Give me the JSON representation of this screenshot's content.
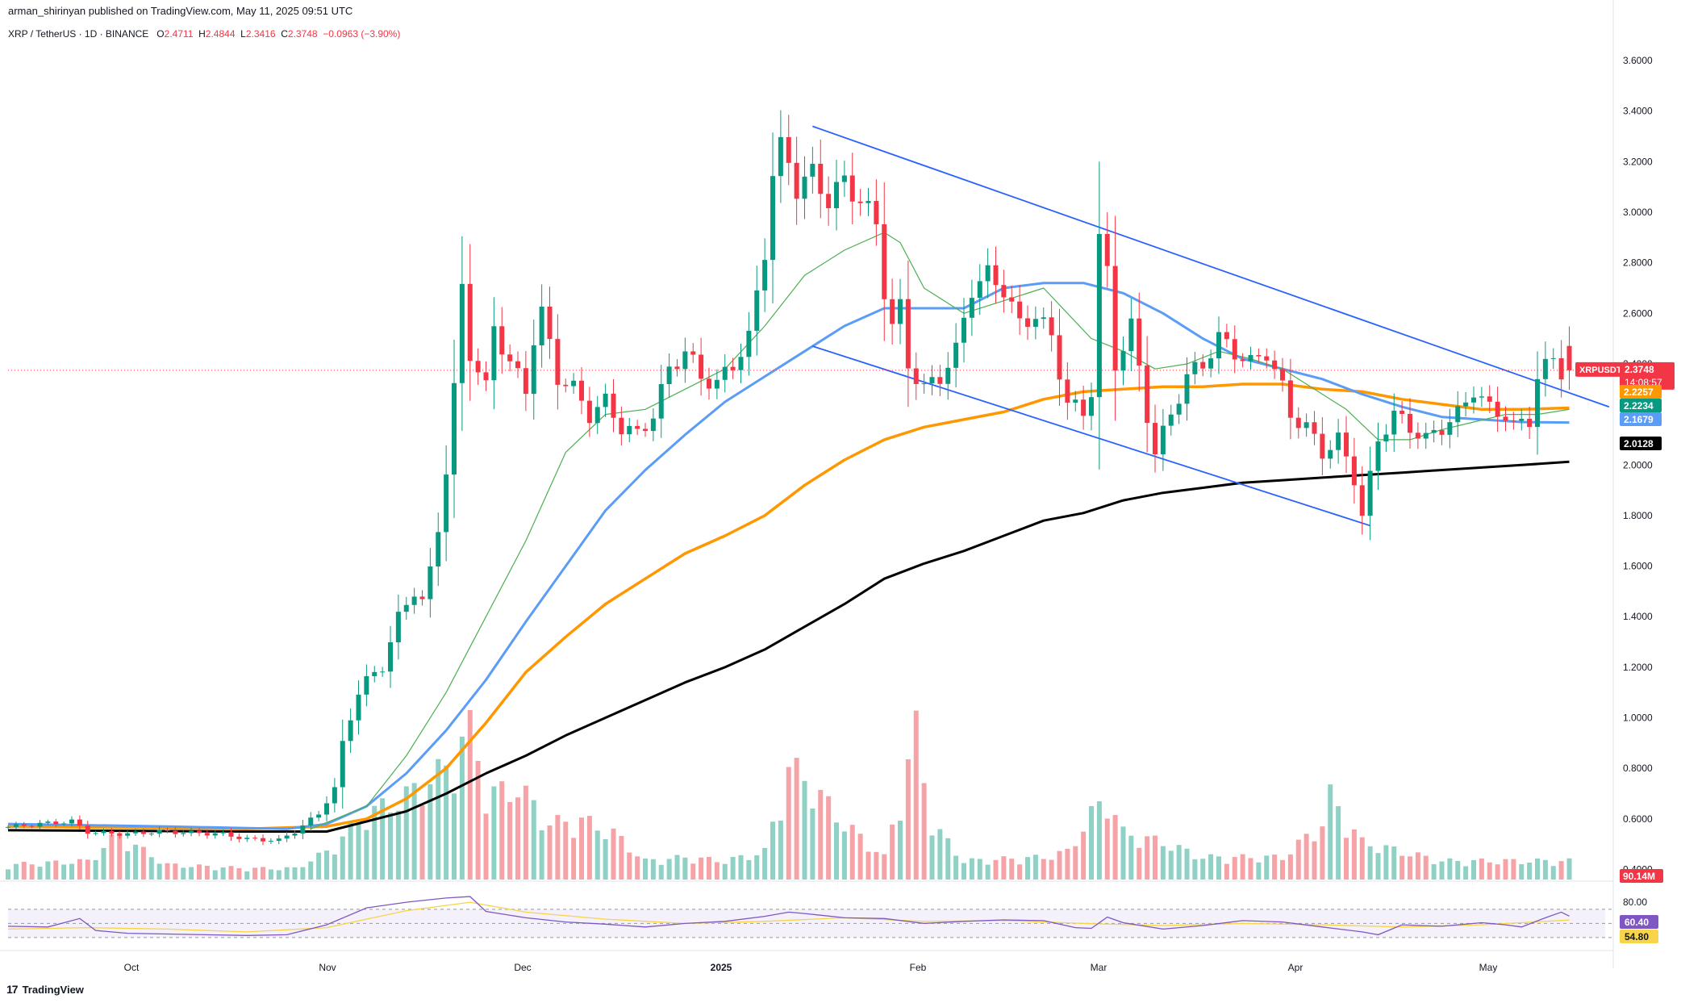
{
  "header": {
    "published": "arman_shirinyan published on TradingView.com, May 11, 2025 09:51 UTC"
  },
  "symbol": {
    "name": "XRP / TetherUS · 1D · BINANCE",
    "open_label": "O",
    "open": "2.4711",
    "high_label": "H",
    "high": "2.4844",
    "low_label": "L",
    "low": "2.3416",
    "close_label": "C",
    "close": "2.3748",
    "change": "−0.0963 (−3.90%)"
  },
  "brand": {
    "name": "TradingView",
    "logo_text": "17"
  },
  "colors": {
    "up": "#089981",
    "down": "#f23645",
    "vol_up": "#8fd1c5",
    "vol_down": "#f6a3a8",
    "ma_green": "#4caf50",
    "ma_blue": "#5b9cf6",
    "ma_orange": "#ff9800",
    "ma_black": "#000000",
    "channel": "#2962ff",
    "rsi": "#7e57c2",
    "rsi_ma": "#f7d44a"
  },
  "chart_data": {
    "type": "candlestick",
    "x_ticks": [
      "Oct",
      "Nov",
      "Dec",
      "2025",
      "Feb",
      "Mar",
      "Apr",
      "May"
    ],
    "y_ticks": [
      "0.4000",
      "0.6000",
      "0.8000",
      "1.0000",
      "1.2000",
      "1.4000",
      "1.6000",
      "1.8000",
      "2.0000",
      "2.2000",
      "2.4000",
      "2.6000",
      "2.8000",
      "3.0000",
      "3.2000",
      "3.4000",
      "3.6000"
    ],
    "ylim": [
      0.36,
      3.68
    ],
    "price_labels": [
      {
        "name": "XRPUSDT",
        "value": "2.3748",
        "timer": "14:08:57",
        "color": "#f23645"
      },
      {
        "value": "2.2257",
        "color": "#ff9800"
      },
      {
        "value": "2.2234",
        "color": "#089981"
      },
      {
        "value": "2.1679",
        "color": "#5b9cf6"
      },
      {
        "value": "2.0128",
        "color": "#000000"
      }
    ],
    "volume_label": "90.14M",
    "rsi": {
      "levels": [
        "80.00"
      ],
      "value": "60.40",
      "ma_value": "54.80"
    },
    "price_path": [
      [
        0,
        0.565
      ],
      [
        5,
        0.58
      ],
      [
        9,
        0.59
      ],
      [
        11,
        0.55
      ],
      [
        12,
        0.545
      ],
      [
        16,
        0.54
      ],
      [
        20,
        0.55
      ],
      [
        24,
        0.545
      ],
      [
        28,
        0.54
      ],
      [
        31,
        0.52
      ],
      [
        35,
        0.515
      ],
      [
        37,
        0.55
      ],
      [
        40,
        0.62
      ],
      [
        42,
        0.72
      ],
      [
        43,
        0.9
      ],
      [
        44,
        1.0
      ],
      [
        45,
        1.1
      ],
      [
        46,
        1.15
      ],
      [
        48,
        1.2
      ],
      [
        50,
        1.4
      ],
      [
        51,
        1.45
      ],
      [
        52,
        1.5
      ],
      [
        53,
        1.46
      ],
      [
        54,
        1.58
      ],
      [
        55,
        1.75
      ],
      [
        56,
        1.98
      ],
      [
        57,
        2.3
      ],
      [
        58,
        2.7
      ],
      [
        59,
        2.45
      ],
      [
        61,
        2.3
      ],
      [
        62,
        2.55
      ],
      [
        64,
        2.4
      ],
      [
        66,
        2.3
      ],
      [
        67,
        2.5
      ],
      [
        68,
        2.6
      ],
      [
        70,
        2.35
      ],
      [
        72,
        2.3
      ],
      [
        74,
        2.2
      ],
      [
        76,
        2.25
      ],
      [
        78,
        2.15
      ],
      [
        80,
        2.12
      ],
      [
        82,
        2.2
      ],
      [
        84,
        2.38
      ],
      [
        86,
        2.45
      ],
      [
        88,
        2.35
      ],
      [
        90,
        2.32
      ],
      [
        92,
        2.4
      ],
      [
        94,
        2.5
      ],
      [
        96,
        2.85
      ],
      [
        97,
        3.15
      ],
      [
        98,
        3.25
      ],
      [
        99,
        3.2
      ],
      [
        100,
        3.1
      ],
      [
        102,
        3.15
      ],
      [
        104,
        3.05
      ],
      [
        106,
        3.12
      ],
      [
        108,
        3.05
      ],
      [
        110,
        2.95
      ],
      [
        111,
        2.7
      ],
      [
        112,
        2.55
      ],
      [
        113,
        2.62
      ],
      [
        114,
        2.4
      ],
      [
        116,
        2.3
      ],
      [
        118,
        2.35
      ],
      [
        120,
        2.45
      ],
      [
        122,
        2.7
      ],
      [
        124,
        2.75
      ],
      [
        126,
        2.7
      ],
      [
        128,
        2.55
      ],
      [
        130,
        2.6
      ],
      [
        132,
        2.5
      ],
      [
        134,
        2.25
      ],
      [
        136,
        2.2
      ],
      [
        137,
        2.3
      ],
      [
        138,
        2.9
      ],
      [
        139,
        2.75
      ],
      [
        140,
        2.4
      ],
      [
        142,
        2.55
      ],
      [
        144,
        2.2
      ],
      [
        145,
        2.05
      ],
      [
        147,
        2.2
      ],
      [
        149,
        2.35
      ],
      [
        151,
        2.4
      ],
      [
        153,
        2.5
      ],
      [
        155,
        2.45
      ],
      [
        157,
        2.4
      ],
      [
        159,
        2.45
      ],
      [
        161,
        2.3
      ],
      [
        162,
        2.2
      ],
      [
        164,
        2.15
      ],
      [
        166,
        2.05
      ],
      [
        168,
        2.1
      ],
      [
        170,
        1.95
      ],
      [
        171,
        1.8
      ],
      [
        173,
        2.1
      ],
      [
        175,
        2.2
      ],
      [
        177,
        2.15
      ],
      [
        179,
        2.1
      ],
      [
        181,
        2.15
      ],
      [
        183,
        2.2
      ],
      [
        185,
        2.3
      ],
      [
        187,
        2.22
      ],
      [
        189,
        2.2
      ],
      [
        190,
        2.15
      ],
      [
        192,
        2.18
      ],
      [
        193,
        2.35
      ],
      [
        195,
        2.42
      ],
      [
        196,
        2.3748
      ]
    ],
    "ma_green": [
      [
        38,
        0.56
      ],
      [
        45,
        0.65
      ],
      [
        50,
        0.85
      ],
      [
        55,
        1.1
      ],
      [
        60,
        1.4
      ],
      [
        65,
        1.7
      ],
      [
        70,
        2.05
      ],
      [
        75,
        2.2
      ],
      [
        80,
        2.22
      ],
      [
        85,
        2.3
      ],
      [
        90,
        2.38
      ],
      [
        95,
        2.55
      ],
      [
        100,
        2.75
      ],
      [
        105,
        2.85
      ],
      [
        110,
        2.92
      ],
      [
        112,
        2.88
      ],
      [
        115,
        2.7
      ],
      [
        120,
        2.6
      ],
      [
        125,
        2.65
      ],
      [
        130,
        2.7
      ],
      [
        133,
        2.6
      ],
      [
        136,
        2.5
      ],
      [
        140,
        2.45
      ],
      [
        144,
        2.38
      ],
      [
        148,
        2.4
      ],
      [
        152,
        2.45
      ],
      [
        156,
        2.42
      ],
      [
        160,
        2.38
      ],
      [
        164,
        2.3
      ],
      [
        168,
        2.22
      ],
      [
        172,
        2.1
      ],
      [
        176,
        2.1
      ],
      [
        180,
        2.14
      ],
      [
        184,
        2.17
      ],
      [
        188,
        2.2
      ],
      [
        192,
        2.2
      ],
      [
        196,
        2.22
      ]
    ],
    "ma_blue": [
      [
        0,
        0.58
      ],
      [
        20,
        0.57
      ],
      [
        35,
        0.56
      ],
      [
        40,
        0.58
      ],
      [
        45,
        0.65
      ],
      [
        50,
        0.78
      ],
      [
        55,
        0.95
      ],
      [
        60,
        1.15
      ],
      [
        65,
        1.38
      ],
      [
        70,
        1.6
      ],
      [
        75,
        1.82
      ],
      [
        80,
        1.98
      ],
      [
        85,
        2.12
      ],
      [
        90,
        2.25
      ],
      [
        95,
        2.35
      ],
      [
        100,
        2.45
      ],
      [
        105,
        2.55
      ],
      [
        110,
        2.62
      ],
      [
        115,
        2.62
      ],
      [
        120,
        2.62
      ],
      [
        125,
        2.7
      ],
      [
        130,
        2.72
      ],
      [
        135,
        2.72
      ],
      [
        140,
        2.68
      ],
      [
        145,
        2.6
      ],
      [
        150,
        2.5
      ],
      [
        155,
        2.42
      ],
      [
        160,
        2.38
      ],
      [
        165,
        2.34
      ],
      [
        170,
        2.28
      ],
      [
        175,
        2.23
      ],
      [
        180,
        2.19
      ],
      [
        185,
        2.18
      ],
      [
        190,
        2.17
      ],
      [
        196,
        2.168
      ]
    ],
    "ma_orange": [
      [
        0,
        0.57
      ],
      [
        30,
        0.56
      ],
      [
        40,
        0.57
      ],
      [
        45,
        0.6
      ],
      [
        50,
        0.68
      ],
      [
        55,
        0.8
      ],
      [
        60,
        0.98
      ],
      [
        65,
        1.18
      ],
      [
        70,
        1.32
      ],
      [
        75,
        1.45
      ],
      [
        80,
        1.55
      ],
      [
        85,
        1.65
      ],
      [
        90,
        1.72
      ],
      [
        95,
        1.8
      ],
      [
        100,
        1.92
      ],
      [
        105,
        2.02
      ],
      [
        110,
        2.1
      ],
      [
        115,
        2.15
      ],
      [
        120,
        2.18
      ],
      [
        125,
        2.21
      ],
      [
        130,
        2.26
      ],
      [
        135,
        2.29
      ],
      [
        140,
        2.3
      ],
      [
        145,
        2.31
      ],
      [
        150,
        2.31
      ],
      [
        155,
        2.32
      ],
      [
        160,
        2.32
      ],
      [
        165,
        2.3
      ],
      [
        170,
        2.29
      ],
      [
        175,
        2.26
      ],
      [
        180,
        2.24
      ],
      [
        185,
        2.22
      ],
      [
        190,
        2.22
      ],
      [
        196,
        2.226
      ]
    ],
    "ma_black": [
      [
        0,
        0.555
      ],
      [
        30,
        0.55
      ],
      [
        40,
        0.55
      ],
      [
        45,
        0.59
      ],
      [
        50,
        0.63
      ],
      [
        55,
        0.7
      ],
      [
        60,
        0.78
      ],
      [
        65,
        0.85
      ],
      [
        70,
        0.93
      ],
      [
        75,
        1.0
      ],
      [
        80,
        1.07
      ],
      [
        85,
        1.14
      ],
      [
        90,
        1.2
      ],
      [
        95,
        1.27
      ],
      [
        100,
        1.36
      ],
      [
        105,
        1.45
      ],
      [
        110,
        1.55
      ],
      [
        115,
        1.61
      ],
      [
        120,
        1.66
      ],
      [
        125,
        1.72
      ],
      [
        130,
        1.78
      ],
      [
        135,
        1.81
      ],
      [
        140,
        1.86
      ],
      [
        145,
        1.89
      ],
      [
        150,
        1.91
      ],
      [
        155,
        1.93
      ],
      [
        160,
        1.94
      ],
      [
        165,
        1.95
      ],
      [
        170,
        1.96
      ],
      [
        175,
        1.97
      ],
      [
        180,
        1.98
      ],
      [
        185,
        1.99
      ],
      [
        190,
        2.0
      ],
      [
        196,
        2.013
      ]
    ],
    "channel_upper": [
      [
        101,
        3.34
      ],
      [
        201,
        2.23
      ]
    ],
    "channel_lower": [
      [
        101,
        2.47
      ],
      [
        171,
        1.76
      ]
    ],
    "volume_path": [
      [
        0,
        0.08
      ],
      [
        10,
        0.1
      ],
      [
        14,
        0.25
      ],
      [
        16,
        0.18
      ],
      [
        20,
        0.08
      ],
      [
        30,
        0.06
      ],
      [
        36,
        0.06
      ],
      [
        40,
        0.15
      ],
      [
        45,
        0.35
      ],
      [
        50,
        0.45
      ],
      [
        55,
        0.6
      ],
      [
        57,
        0.75
      ],
      [
        58,
        0.9
      ],
      [
        60,
        0.45
      ],
      [
        64,
        0.5
      ],
      [
        68,
        0.3
      ],
      [
        72,
        0.32
      ],
      [
        76,
        0.25
      ],
      [
        80,
        0.1
      ],
      [
        85,
        0.12
      ],
      [
        90,
        0.1
      ],
      [
        95,
        0.15
      ],
      [
        98,
        0.6
      ],
      [
        100,
        0.55
      ],
      [
        105,
        0.3
      ],
      [
        110,
        0.12
      ],
      [
        114,
        0.8
      ],
      [
        116,
        0.3
      ],
      [
        120,
        0.1
      ],
      [
        130,
        0.12
      ],
      [
        133,
        0.15
      ],
      [
        136,
        0.35
      ],
      [
        138,
        0.45
      ],
      [
        140,
        0.25
      ],
      [
        145,
        0.2
      ],
      [
        150,
        0.12
      ],
      [
        160,
        0.12
      ],
      [
        165,
        0.3
      ],
      [
        166,
        0.45
      ],
      [
        170,
        0.2
      ],
      [
        180,
        0.1
      ],
      [
        190,
        0.1
      ],
      [
        196,
        0.1
      ]
    ],
    "rsi_path": [
      [
        0,
        46
      ],
      [
        5,
        45
      ],
      [
        9,
        57
      ],
      [
        11,
        40
      ],
      [
        15,
        36
      ],
      [
        20,
        35
      ],
      [
        30,
        33
      ],
      [
        35,
        34
      ],
      [
        40,
        48
      ],
      [
        45,
        72
      ],
      [
        50,
        80
      ],
      [
        55,
        86
      ],
      [
        58,
        88
      ],
      [
        60,
        67
      ],
      [
        65,
        58
      ],
      [
        70,
        52
      ],
      [
        75,
        49
      ],
      [
        80,
        45
      ],
      [
        85,
        50
      ],
      [
        90,
        53
      ],
      [
        95,
        60
      ],
      [
        98,
        66
      ],
      [
        100,
        64
      ],
      [
        105,
        58
      ],
      [
        110,
        57
      ],
      [
        115,
        50
      ],
      [
        120,
        53
      ],
      [
        125,
        55
      ],
      [
        130,
        54
      ],
      [
        134,
        44
      ],
      [
        136,
        43
      ],
      [
        138,
        59
      ],
      [
        140,
        51
      ],
      [
        145,
        42
      ],
      [
        150,
        47
      ],
      [
        155,
        54
      ],
      [
        160,
        52
      ],
      [
        165,
        45
      ],
      [
        170,
        38
      ],
      [
        172,
        34
      ],
      [
        175,
        48
      ],
      [
        180,
        46
      ],
      [
        185,
        51
      ],
      [
        188,
        48
      ],
      [
        190,
        45
      ],
      [
        193,
        58
      ],
      [
        195,
        66
      ],
      [
        196,
        60.4
      ]
    ],
    "rsi_ma_path": [
      [
        0,
        42
      ],
      [
        10,
        44
      ],
      [
        20,
        42
      ],
      [
        30,
        38
      ],
      [
        40,
        44
      ],
      [
        50,
        68
      ],
      [
        58,
        80
      ],
      [
        65,
        66
      ],
      [
        75,
        56
      ],
      [
        85,
        50
      ],
      [
        95,
        53
      ],
      [
        105,
        58
      ],
      [
        115,
        53
      ],
      [
        125,
        54
      ],
      [
        135,
        50
      ],
      [
        145,
        47
      ],
      [
        155,
        50
      ],
      [
        165,
        48
      ],
      [
        175,
        45
      ],
      [
        185,
        48
      ],
      [
        196,
        54.8
      ]
    ]
  }
}
